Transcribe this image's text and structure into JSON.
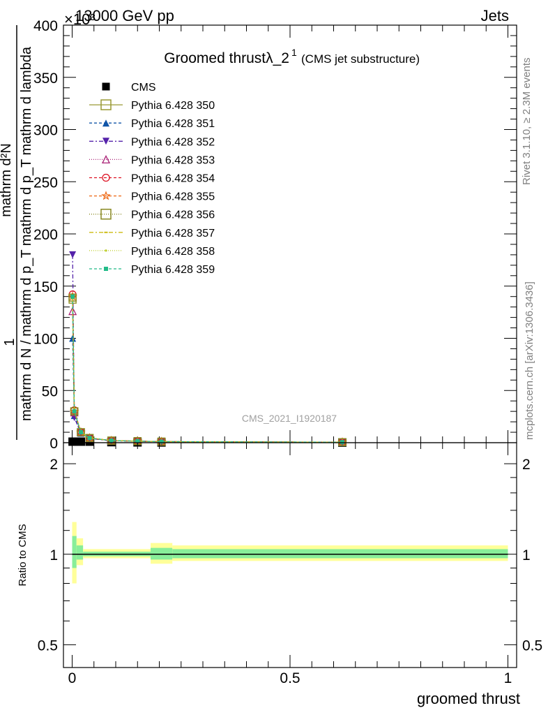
{
  "header": {
    "energy_label": "13000 GeV pp",
    "process_label": "Jets",
    "exponent_label": "×10³"
  },
  "side_labels": {
    "rivet": "Rivet 3.1.10, ≥ 2.3M events",
    "mcplots": "mcplots.cern.ch [arXiv:1306.3436]"
  },
  "watermark": "CMS_2021_I1920187",
  "chart_data": [
    {
      "type": "line",
      "title": "Groomed thrustλ_2",
      "title_superscript": "1",
      "subtitle": "(CMS jet substructure)",
      "ylabel_numerator": "1",
      "ylabel_denominator": "mathrm d N / mathrm d p_T mathrm d p_T mathrm d lambda",
      "ylabel_top": "mathrm d²N",
      "xlim": [
        -0.02,
        1.02
      ],
      "ylim": [
        0,
        400
      ],
      "yticks": [
        0,
        50,
        100,
        150,
        200,
        250,
        300,
        350,
        400
      ],
      "ytick_labels": [
        "0",
        "50",
        "100",
        "150",
        "200",
        "250",
        "300",
        "350",
        "400"
      ],
      "legend_position": "top-left",
      "x": [
        0.001,
        0.005,
        0.02,
        0.04,
        0.09,
        0.15,
        0.205,
        0.62
      ],
      "series": [
        {
          "name": "CMS",
          "color": "#000000",
          "marker": "filled-square",
          "dash": "none",
          "values": [
            1.0,
            1.0,
            1.0,
            1.0,
            0.5,
            0.3,
            0.2,
            0.1
          ]
        },
        {
          "name": "Pythia 6.428 350",
          "color": "#999933",
          "marker": "open-square",
          "dash": "solid",
          "values": [
            137,
            30,
            10,
            4.5,
            2.0,
            1.5,
            1.0,
            0.5
          ]
        },
        {
          "name": "Pythia 6.428 351",
          "color": "#1055a8",
          "marker": "filled-triangle-up",
          "dash": "4,3",
          "values": [
            100,
            26,
            9,
            4.2,
            1.9,
            1.4,
            1.0,
            0.5
          ]
        },
        {
          "name": "Pythia 6.428 352",
          "color": "#5522aa",
          "marker": "filled-triangle-down",
          "dash": "6,3,2,3",
          "values": [
            180,
            24,
            9,
            4.0,
            1.8,
            1.3,
            0.9,
            0.5
          ]
        },
        {
          "name": "Pythia 6.428 353",
          "color": "#aa2277",
          "marker": "open-triangle-up",
          "dash": "1,2",
          "values": [
            126,
            29,
            10,
            4.4,
            2.0,
            1.5,
            1.0,
            0.5
          ]
        },
        {
          "name": "Pythia 6.428 354",
          "color": "#dd1122",
          "marker": "open-circle",
          "dash": "4,3",
          "values": [
            142,
            31,
            10,
            4.5,
            2.0,
            1.5,
            1.0,
            0.5
          ]
        },
        {
          "name": "Pythia 6.428 355",
          "color": "#ee6611",
          "marker": "open-star",
          "dash": "4,3",
          "values": [
            140,
            30,
            10,
            4.5,
            2.0,
            1.5,
            1.0,
            0.5
          ]
        },
        {
          "name": "Pythia 6.428 356",
          "color": "#888822",
          "marker": "open-square",
          "dash": "1,2",
          "values": [
            139,
            30,
            10,
            4.5,
            2.0,
            1.5,
            1.0,
            0.5
          ]
        },
        {
          "name": "Pythia 6.428 357",
          "color": "#ccbb11",
          "marker": "dash-dot",
          "dash": "6,3,2,3",
          "values": [
            138,
            30,
            10,
            4.5,
            2.0,
            1.5,
            1.0,
            0.5
          ]
        },
        {
          "name": "Pythia 6.428 358",
          "color": "#bbcc22",
          "marker": "small-dot",
          "dash": "1,2",
          "values": [
            139,
            30,
            10,
            4.5,
            2.0,
            1.5,
            1.0,
            0.5
          ]
        },
        {
          "name": "Pythia 6.428 359",
          "color": "#22bb88",
          "marker": "filled-square-small",
          "dash": "4,3",
          "values": [
            140,
            30,
            10,
            4.5,
            2.0,
            1.5,
            1.0,
            0.5
          ]
        }
      ]
    },
    {
      "type": "area",
      "ylabel": "Ratio to CMS",
      "xlabel": "groomed thrust",
      "xlim": [
        -0.02,
        1.02
      ],
      "ylim": [
        0.42,
        2.35
      ],
      "log_y": true,
      "xticks": [
        0,
        0.5,
        1
      ],
      "xtick_labels": [
        "0",
        "0.5",
        "1"
      ],
      "yticks": [
        0.5,
        1,
        2
      ],
      "ytick_labels": [
        "0.5",
        "1",
        "2"
      ],
      "reference_line": 1,
      "bands": [
        {
          "x0": 0.0,
          "x1": 0.01,
          "outer": [
            0.8,
            1.28
          ],
          "inner": [
            0.9,
            1.15
          ]
        },
        {
          "x0": 0.01,
          "x1": 0.025,
          "outer": [
            0.92,
            1.13
          ],
          "inner": [
            0.96,
            1.07
          ]
        },
        {
          "x0": 0.025,
          "x1": 0.18,
          "outer": [
            0.97,
            1.04
          ],
          "inner": [
            0.985,
            1.02
          ]
        },
        {
          "x0": 0.18,
          "x1": 0.23,
          "outer": [
            0.93,
            1.09
          ],
          "inner": [
            0.96,
            1.05
          ]
        },
        {
          "x0": 0.23,
          "x1": 1.0,
          "outer": [
            0.95,
            1.07
          ],
          "inner": [
            0.97,
            1.04
          ]
        }
      ],
      "band_colors": {
        "outer": "#ffff99",
        "inner": "#88ee99"
      }
    }
  ]
}
